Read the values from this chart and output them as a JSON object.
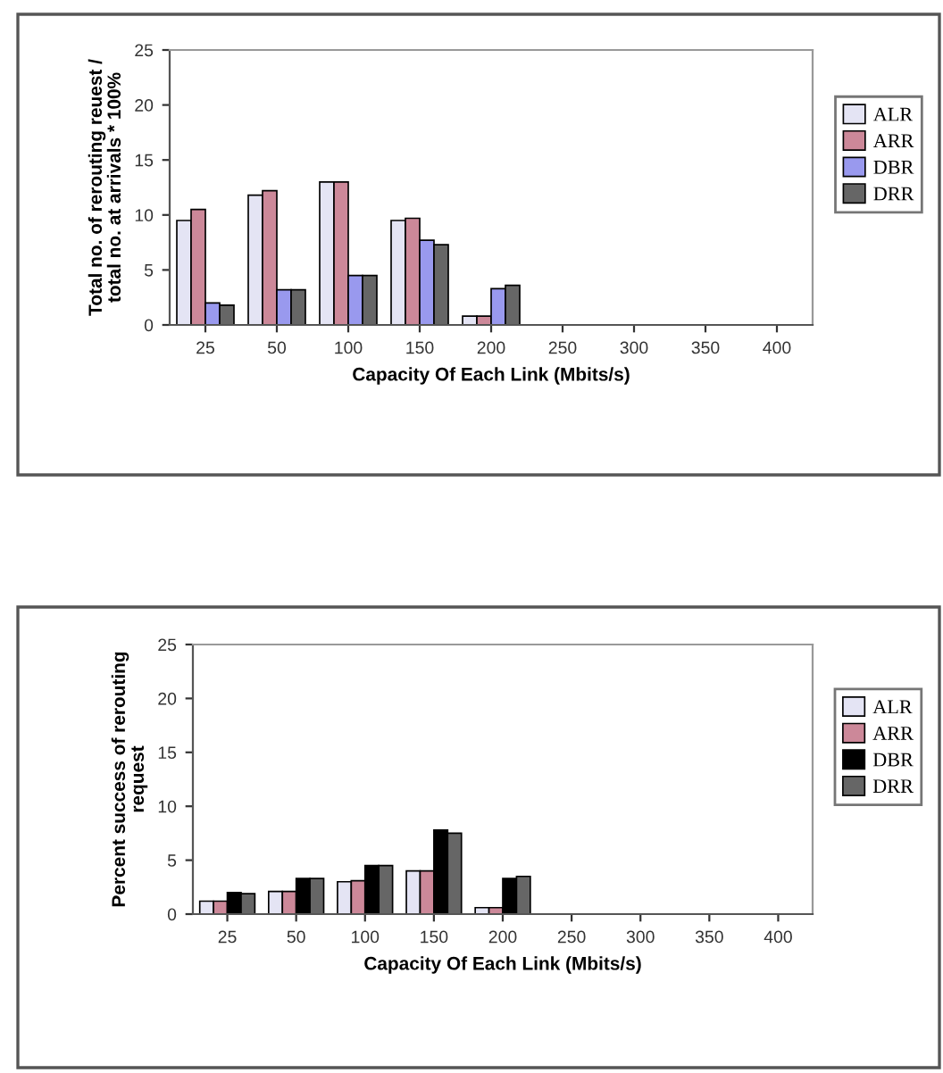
{
  "chart_data": [
    {
      "type": "bar",
      "xlabel": "Capacity Of Each Link (Mbits/s)",
      "ylabel": "Total no. of rerouting reuest /\ntotal no. at arrivals * 100%",
      "categories": [
        "25",
        "50",
        "100",
        "150",
        "200",
        "250",
        "300",
        "350",
        "400"
      ],
      "ylim": [
        0,
        25
      ],
      "yticks": [
        0,
        5,
        10,
        15,
        20,
        25
      ],
      "grid": false,
      "legend": "right",
      "series": [
        {
          "name": "ALR",
          "color": "#e4e4f4",
          "values": [
            9.5,
            11.8,
            13,
            9.5,
            0.8,
            0,
            0,
            0,
            0
          ]
        },
        {
          "name": "ARR",
          "color": "#cc8899",
          "values": [
            10.5,
            12.2,
            13,
            9.7,
            0.8,
            0,
            0,
            0,
            0
          ]
        },
        {
          "name": "DBR",
          "color": "#9999ee",
          "values": [
            2,
            3.2,
            4.5,
            7.7,
            3.3,
            0,
            0,
            0,
            0
          ]
        },
        {
          "name": "DRR",
          "color": "#666666",
          "values": [
            1.8,
            3.2,
            4.5,
            7.3,
            3.6,
            0,
            0,
            0,
            0
          ]
        }
      ]
    },
    {
      "type": "bar",
      "xlabel": "Capacity Of Each Link (Mbits/s)",
      "ylabel": "Percent success of rerouting\nrequest",
      "categories": [
        "25",
        "50",
        "100",
        "150",
        "200",
        "250",
        "300",
        "350",
        "400"
      ],
      "ylim": [
        0,
        25
      ],
      "yticks": [
        0,
        5,
        10,
        15,
        20,
        25
      ],
      "grid": false,
      "legend": "right",
      "series": [
        {
          "name": "ALR",
          "color": "#e4e4f4",
          "values": [
            1.2,
            2.1,
            3,
            4,
            0.6,
            0,
            0,
            0,
            0
          ]
        },
        {
          "name": "ARR",
          "color": "#cc8899",
          "values": [
            1.2,
            2.1,
            3.1,
            4,
            0.6,
            0,
            0,
            0,
            0
          ]
        },
        {
          "name": "DBR",
          "color": "#000000",
          "values": [
            2,
            3.3,
            4.5,
            7.8,
            3.3,
            0,
            0,
            0,
            0
          ]
        },
        {
          "name": "DRR",
          "color": "#666666",
          "values": [
            1.9,
            3.3,
            4.5,
            7.5,
            3.5,
            0,
            0,
            0,
            0
          ]
        }
      ]
    }
  ]
}
